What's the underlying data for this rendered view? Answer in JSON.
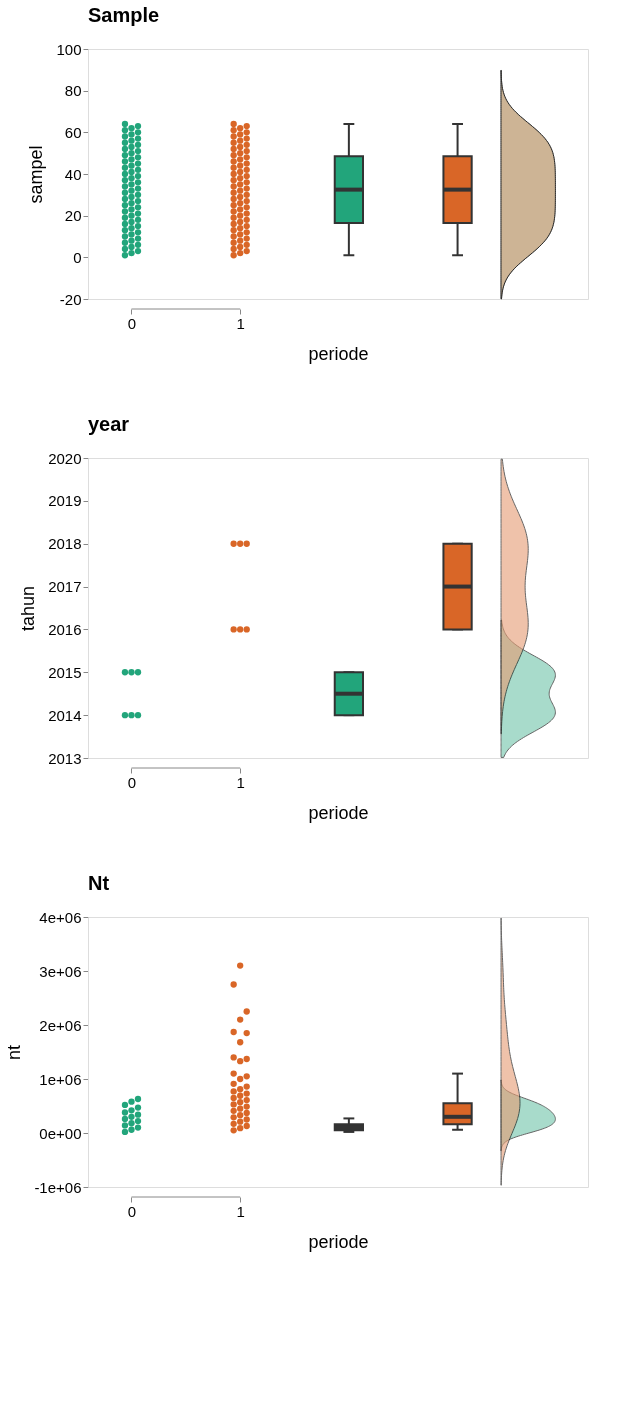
{
  "chart_data": [
    {
      "type": "box",
      "title": "Sample",
      "xlabel": "periode",
      "ylabel": "sampel",
      "categories": [
        "0",
        "1",
        null,
        null
      ],
      "ylim": [
        -20,
        100
      ],
      "yticks": [
        -20,
        0,
        20,
        40,
        60,
        80,
        100
      ],
      "grid": false,
      "marker": "circle",
      "series": [
        {
          "type": "scatter",
          "color": "#22a57b",
          "x": [
            "0",
            "0",
            "0",
            "0",
            "0",
            "0",
            "0",
            "0",
            "0",
            "0",
            "0",
            "0",
            "0",
            "0",
            "0",
            "0",
            "0",
            "0",
            "0",
            "0",
            "0",
            "0",
            "0",
            "0",
            "0",
            "0",
            "0",
            "0",
            "0",
            "0",
            "0",
            "0",
            "0",
            "0",
            "0",
            "0",
            "0",
            "0",
            "0",
            "0",
            "0",
            "0",
            "0",
            "0",
            "0",
            "0",
            "0",
            "0",
            "0",
            "0",
            "0",
            "0",
            "0",
            "0",
            "0",
            "0",
            "0",
            "0",
            "0",
            "0",
            "0",
            "0",
            "0",
            "0"
          ],
          "values": [
            1,
            2,
            3,
            4,
            5,
            6,
            7,
            8,
            9,
            10,
            11,
            12,
            13,
            14,
            15,
            16,
            17,
            18,
            19,
            20,
            21,
            22,
            23,
            24,
            25,
            26,
            27,
            28,
            29,
            30,
            31,
            32,
            33,
            34,
            35,
            36,
            37,
            38,
            39,
            40,
            41,
            42,
            43,
            44,
            45,
            46,
            47,
            48,
            49,
            50,
            51,
            52,
            53,
            54,
            55,
            56,
            57,
            58,
            59,
            60,
            61,
            62,
            63,
            64
          ]
        },
        {
          "type": "scatter",
          "color": "#d96627",
          "x": [
            "1",
            "1",
            "1",
            "1",
            "1",
            "1",
            "1",
            "1",
            "1",
            "1",
            "1",
            "1",
            "1",
            "1",
            "1",
            "1",
            "1",
            "1",
            "1",
            "1",
            "1",
            "1",
            "1",
            "1",
            "1",
            "1",
            "1",
            "1",
            "1",
            "1",
            "1",
            "1",
            "1",
            "1",
            "1",
            "1",
            "1",
            "1",
            "1",
            "1",
            "1",
            "1",
            "1",
            "1",
            "1",
            "1",
            "1",
            "1",
            "1",
            "1",
            "1",
            "1",
            "1",
            "1",
            "1",
            "1",
            "1",
            "1",
            "1",
            "1",
            "1",
            "1",
            "1",
            "1"
          ],
          "values": [
            1,
            2,
            3,
            4,
            5,
            6,
            7,
            8,
            9,
            10,
            11,
            12,
            13,
            14,
            15,
            16,
            17,
            18,
            19,
            20,
            21,
            22,
            23,
            24,
            25,
            26,
            27,
            28,
            29,
            30,
            31,
            32,
            33,
            34,
            35,
            36,
            37,
            38,
            39,
            40,
            41,
            42,
            43,
            44,
            45,
            46,
            47,
            48,
            49,
            50,
            51,
            52,
            53,
            54,
            55,
            56,
            57,
            58,
            59,
            60,
            61,
            62,
            63,
            64
          ]
        },
        {
          "type": "box",
          "color": "#22a57b",
          "boxes": [
            null,
            null,
            {
              "low": 1,
              "q1": 16.5,
              "median": 32.5,
              "q3": 48.5,
              "high": 64
            },
            null
          ]
        },
        {
          "type": "box",
          "color": "#d96627",
          "boxes": [
            null,
            null,
            null,
            {
              "low": 1,
              "q1": 16.5,
              "median": 32.5,
              "q3": 48.5,
              "high": 64
            }
          ]
        }
      ]
    },
    {
      "type": "box",
      "title": "year",
      "xlabel": "periode",
      "ylabel": "tahun",
      "categories": [
        "0",
        "1",
        null,
        null
      ],
      "ylim": [
        2013,
        2020
      ],
      "yticks": [
        2013,
        2014,
        2015,
        2016,
        2017,
        2018,
        2019,
        2020
      ],
      "grid": false,
      "marker": "circle",
      "series": [
        {
          "type": "scatter",
          "color": "#22a57b",
          "x": [
            "0",
            "0",
            "0",
            "0",
            "0",
            "0"
          ],
          "values": [
            2014,
            2014,
            2014,
            2015,
            2015,
            2015
          ]
        },
        {
          "type": "scatter",
          "color": "#d96627",
          "x": [
            "1",
            "1",
            "1",
            "1",
            "1",
            "1"
          ],
          "values": [
            2016,
            2016,
            2016,
            2018,
            2018,
            2018
          ]
        },
        {
          "type": "box",
          "color": "#22a57b",
          "boxes": [
            null,
            null,
            {
              "low": 2014,
              "q1": 2014,
              "median": 2014.5,
              "q3": 2015,
              "high": 2015
            },
            null
          ]
        },
        {
          "type": "box",
          "color": "#d96627",
          "boxes": [
            null,
            null,
            null,
            {
              "low": 2016,
              "q1": 2016,
              "median": 2017,
              "q3": 2018,
              "high": 2018
            }
          ]
        }
      ]
    },
    {
      "type": "box",
      "title": "Nt",
      "xlabel": "periode",
      "ylabel": "nt",
      "categories": [
        "0",
        "1",
        null,
        null
      ],
      "ylim": [
        -1000000,
        4000000
      ],
      "yticks": [
        {
          "value": -1000000,
          "label": "-1e+06"
        },
        {
          "value": 0,
          "label": "0e+00"
        },
        {
          "value": 1000000,
          "label": "1e+06"
        },
        {
          "value": 2000000,
          "label": "2e+06"
        },
        {
          "value": 3000000,
          "label": "3e+06"
        },
        {
          "value": 4000000,
          "label": "4e+06"
        }
      ],
      "grid": false,
      "marker": "circle",
      "series": [
        {
          "type": "scatter",
          "color": "#22a57b",
          "x": [
            "0",
            "0",
            "0",
            "0",
            "0",
            "0",
            "0",
            "0",
            "0",
            "0",
            "0",
            "0",
            "0",
            "0",
            "0"
          ],
          "values": [
            20000,
            60000,
            100000,
            140000,
            180000,
            220000,
            260000,
            300000,
            340000,
            380000,
            420000,
            470000,
            520000,
            580000,
            630000
          ]
        },
        {
          "type": "scatter",
          "color": "#d96627",
          "x": [
            "1",
            "1",
            "1",
            "1",
            "1",
            "1",
            "1",
            "1",
            "1",
            "1",
            "1",
            "1",
            "1",
            "1",
            "1",
            "1",
            "1",
            "1",
            "1",
            "1",
            "1",
            "1",
            "1",
            "1",
            "1",
            "1",
            "1",
            "1",
            "1",
            "1",
            "1",
            "1",
            "1",
            "1",
            "1"
          ],
          "values": [
            50000,
            90000,
            130000,
            170000,
            210000,
            250000,
            290000,
            330000,
            370000,
            410000,
            450000,
            490000,
            530000,
            570000,
            610000,
            650000,
            690000,
            730000,
            770000,
            810000,
            860000,
            910000,
            1000000,
            1050000,
            1100000,
            1330000,
            1370000,
            1400000,
            1680000,
            1850000,
            1870000,
            2100000,
            2250000,
            2750000,
            3100000
          ]
        },
        {
          "type": "box",
          "color": "#333a3a",
          "boxes": [
            null,
            null,
            {
              "low": 20000,
              "q1": 50000,
              "median": 110000,
              "q3": 160000,
              "high": 270000
            },
            null
          ]
        },
        {
          "type": "box",
          "color": "#d96627",
          "boxes": [
            null,
            null,
            null,
            {
              "low": 60000,
              "q1": 160000,
              "median": 300000,
              "q3": 550000,
              "high": 1100000
            }
          ]
        }
      ]
    }
  ]
}
